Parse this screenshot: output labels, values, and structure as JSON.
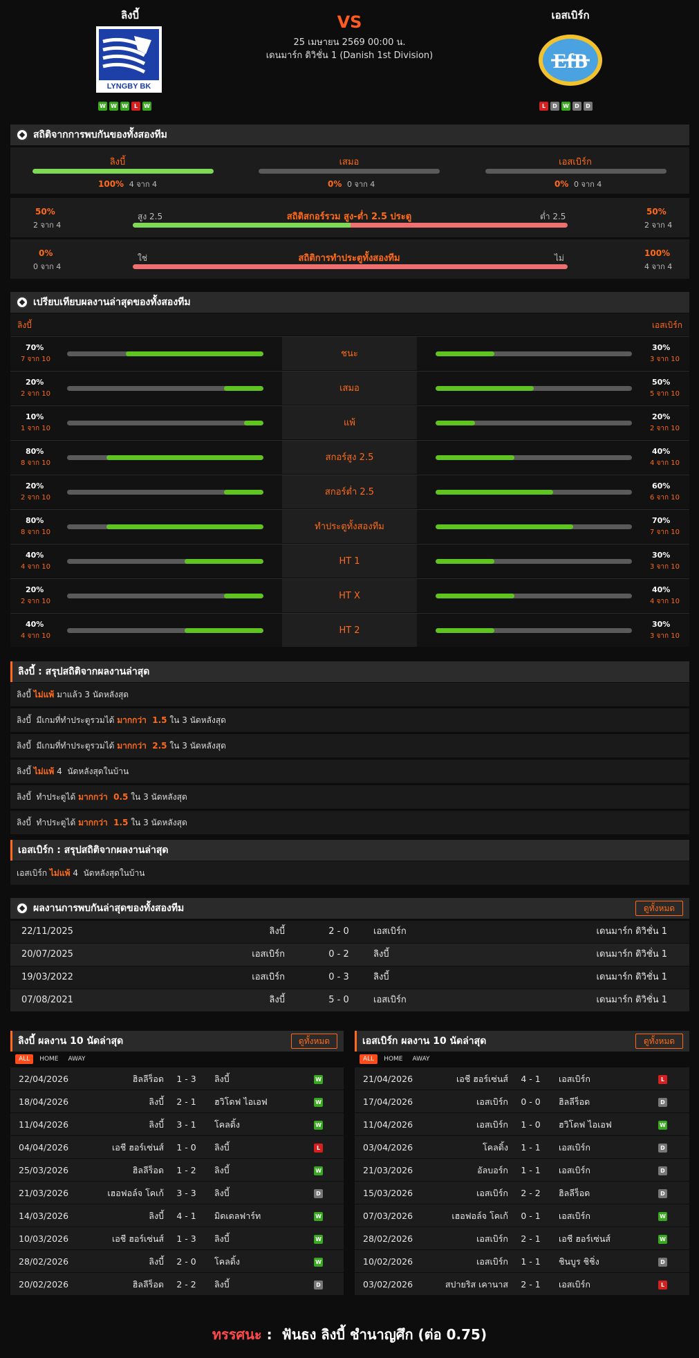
{
  "header": {
    "home_team": "ลิงบี้",
    "away_team": "เอสเบิร์ก",
    "vs": "VS",
    "datetime": "25 เมษายน 2569 00:00 น.",
    "league": "เดนมาร์ก ดิวิชั่น 1 (Danish 1st Division)",
    "home_logo_text": "LYNGBY BK",
    "away_logo_text": "EfB",
    "home_form": [
      "W",
      "W",
      "W",
      "L",
      "W"
    ],
    "away_form": [
      "L",
      "D",
      "W",
      "D",
      "D"
    ]
  },
  "h2h_stats": {
    "title": "สถิติจากการพบกันของทั้งสองทีม",
    "home": {
      "label": "ลิงบี้",
      "pct": "100%",
      "count": "4 จาก 4",
      "value": 1.0
    },
    "draw": {
      "label": "เสมอ",
      "pct": "0%",
      "count": "0 จาก 4",
      "value": 0
    },
    "away": {
      "label": "เอสเบิร์ก",
      "pct": "0%",
      "count": "0 จาก 4",
      "value": 0
    },
    "ou": {
      "title": "สถิติสกอร์รวม สูง-ต่ำ 2.5 ประตู",
      "left_label": "สูง 2.5",
      "right_label": "ต่ำ 2.5",
      "left_pct": "50%",
      "left_count": "2 จาก 4",
      "right_pct": "50%",
      "right_count": "2 จาก 4",
      "value": 0.5
    },
    "btts": {
      "title": "สถิติการทำประตูทั้งสองทีม",
      "left_label": "ใช่",
      "right_label": "ไม่",
      "left_pct": "0%",
      "left_count": "0 จาก 4",
      "right_pct": "100%",
      "right_count": "4 จาก 4",
      "value": 0
    }
  },
  "compare": {
    "title": "เปรียบเทียบผลงานล่าสุดของทั้งสองทีม",
    "home_label": "ลิงบี้",
    "away_label": "เอสเบิร์ก",
    "rows": [
      {
        "label": "ชนะ",
        "hp": "70%",
        "hc": "7 จาก 10",
        "hv": 0.7,
        "ap": "30%",
        "ac": "3 จาก 10",
        "av": 0.3
      },
      {
        "label": "เสมอ",
        "hp": "20%",
        "hc": "2 จาก 10",
        "hv": 0.2,
        "ap": "50%",
        "ac": "5 จาก 10",
        "av": 0.5
      },
      {
        "label": "แพ้",
        "hp": "10%",
        "hc": "1 จาก 10",
        "hv": 0.1,
        "ap": "20%",
        "ac": "2 จาก 10",
        "av": 0.2
      },
      {
        "label": "สกอร์สูง 2.5",
        "hp": "80%",
        "hc": "8 จาก 10",
        "hv": 0.8,
        "ap": "40%",
        "ac": "4 จาก 10",
        "av": 0.4
      },
      {
        "label": "สกอร์ต่ำ 2.5",
        "hp": "20%",
        "hc": "2 จาก 10",
        "hv": 0.2,
        "ap": "60%",
        "ac": "6 จาก 10",
        "av": 0.6
      },
      {
        "label": "ทำประตูทั้งสองทีม",
        "hp": "80%",
        "hc": "8 จาก 10",
        "hv": 0.8,
        "ap": "70%",
        "ac": "7 จาก 10",
        "av": 0.7
      },
      {
        "label": "HT 1",
        "hp": "40%",
        "hc": "4 จาก 10",
        "hv": 0.4,
        "ap": "30%",
        "ac": "3 จาก 10",
        "av": 0.3
      },
      {
        "label": "HT X",
        "hp": "20%",
        "hc": "2 จาก 10",
        "hv": 0.2,
        "ap": "40%",
        "ac": "4 จาก 10",
        "av": 0.4
      },
      {
        "label": "HT 2",
        "hp": "40%",
        "hc": "4 จาก 10",
        "hv": 0.4,
        "ap": "30%",
        "ac": "3 จาก 10",
        "av": 0.3
      }
    ]
  },
  "home_summary": {
    "title": "ลิงบี้ : สรุปสถิติจากผลงานล่าสุด",
    "items": [
      {
        "a": "ลิงบี้",
        "b": "ไม่แพ้",
        "c": "มาแล้ว 3 นัดหลังสุด"
      },
      {
        "a": "ลิงบี้  มีเกมที่ทำประตูรวมได้",
        "b": "มากกว่า  1.5",
        "c": "ใน 3 นัดหลังสุด"
      },
      {
        "a": "ลิงบี้  มีเกมที่ทำประตูรวมได้",
        "b": "มากกว่า  2.5",
        "c": "ใน 3 นัดหลังสุด"
      },
      {
        "a": "ลิงบี้",
        "b": "ไม่แพ้",
        "c": "4  นัดหลังสุดในบ้าน"
      },
      {
        "a": "ลิงบี้  ทำประตูได้",
        "b": "มากกว่า  0.5",
        "c": "ใน 3 นัดหลังสุด"
      },
      {
        "a": "ลิงบี้  ทำประตูได้",
        "b": "มากกว่า  1.5",
        "c": "ใน 3 นัดหลังสุด"
      }
    ]
  },
  "away_summary": {
    "title": "เอสเบิร์ก : สรุปสถิติจากผลงานล่าสุด",
    "items": [
      {
        "a": "เอสเบิร์ก",
        "b": "ไม่แพ้",
        "c": "4  นัดหลังสุดในบ้าน"
      }
    ]
  },
  "h2h_results": {
    "title": "ผลงานการพบกันล่าสุดของทั้งสองทีม",
    "view_all": "ดูทั้งหมด",
    "rows": [
      {
        "date": "22/11/2025",
        "home": "ลิงบี้",
        "score": "2 - 0",
        "away": "เอสเบิร์ก",
        "league": "เดนมาร์ก ดิวิชั่น 1"
      },
      {
        "date": "20/07/2025",
        "home": "เอสเบิร์ก",
        "score": "0 - 2",
        "away": "ลิงบี้",
        "league": "เดนมาร์ก ดิวิชั่น 1"
      },
      {
        "date": "19/03/2022",
        "home": "เอสเบิร์ก",
        "score": "0 - 3",
        "away": "ลิงบี้",
        "league": "เดนมาร์ก ดิวิชั่น 1"
      },
      {
        "date": "07/08/2021",
        "home": "ลิงบี้",
        "score": "5 - 0",
        "away": "เอสเบิร์ก",
        "league": "เดนมาร์ก ดิวิชั่น 1"
      }
    ]
  },
  "home_form_table": {
    "title": "ลิงบี้ ผลงาน 10 นัดล่าสุด",
    "view_all": "ดูทั้งหมด",
    "tabs": [
      "ALL",
      "HOME",
      "AWAY"
    ],
    "rows": [
      {
        "date": "22/04/2026",
        "home": "ฮิลลีร็อด",
        "score": "1 - 3",
        "away": "ลิงบี้",
        "r": "W"
      },
      {
        "date": "18/04/2026",
        "home": "ลิงบี้",
        "score": "2 - 1",
        "away": "ฮวิโดฟ ไอเอฟ",
        "r": "W"
      },
      {
        "date": "11/04/2026",
        "home": "ลิงบี้",
        "score": "3 - 1",
        "away": "โคลดิ้ง",
        "r": "W"
      },
      {
        "date": "04/04/2026",
        "home": "เอชี ฮอร์เซ่นส์",
        "score": "1 - 0",
        "away": "ลิงบี้",
        "r": "L"
      },
      {
        "date": "25/03/2026",
        "home": "ฮิลลีร็อด",
        "score": "1 - 2",
        "away": "ลิงบี้",
        "r": "W"
      },
      {
        "date": "21/03/2026",
        "home": "เฮอฟอล์จ โคเก้",
        "score": "3 - 3",
        "away": "ลิงบี้",
        "r": "D"
      },
      {
        "date": "14/03/2026",
        "home": "ลิงบี้",
        "score": "4 - 1",
        "away": "มิดเดลฟาร์ท",
        "r": "W"
      },
      {
        "date": "10/03/2026",
        "home": "เอชี ฮอร์เซ่นส์",
        "score": "1 - 3",
        "away": "ลิงบี้",
        "r": "W"
      },
      {
        "date": "28/02/2026",
        "home": "ลิงบี้",
        "score": "2 - 0",
        "away": "โคลดิ้ง",
        "r": "W"
      },
      {
        "date": "20/02/2026",
        "home": "ฮิลลีร็อด",
        "score": "2 - 2",
        "away": "ลิงบี้",
        "r": "D"
      }
    ]
  },
  "away_form_table": {
    "title": "เอสเบิร์ก ผลงาน 10 นัดล่าสุด",
    "view_all": "ดูทั้งหมด",
    "tabs": [
      "ALL",
      "HOME",
      "AWAY"
    ],
    "rows": [
      {
        "date": "21/04/2026",
        "home": "เอชี ฮอร์เซ่นส์",
        "score": "4 - 1",
        "away": "เอสเบิร์ก",
        "r": "L"
      },
      {
        "date": "17/04/2026",
        "home": "เอสเบิร์ก",
        "score": "0 - 0",
        "away": "ฮิลลีร็อด",
        "r": "D"
      },
      {
        "date": "11/04/2026",
        "home": "เอสเบิร์ก",
        "score": "1 - 0",
        "away": "ฮวิโดฟ ไอเอฟ",
        "r": "W"
      },
      {
        "date": "03/04/2026",
        "home": "โคลดิ้ง",
        "score": "1 - 1",
        "away": "เอสเบิร์ก",
        "r": "D"
      },
      {
        "date": "21/03/2026",
        "home": "อัลบอร์ก",
        "score": "1 - 1",
        "away": "เอสเบิร์ก",
        "r": "D"
      },
      {
        "date": "15/03/2026",
        "home": "เอสเบิร์ก",
        "score": "2 - 2",
        "away": "ฮิลลีร็อด",
        "r": "D"
      },
      {
        "date": "07/03/2026",
        "home": "เฮอฟอล์จ โคเก้",
        "score": "0 - 1",
        "away": "เอสเบิร์ก",
        "r": "W"
      },
      {
        "date": "28/02/2026",
        "home": "เอสเบิร์ก",
        "score": "2 - 1",
        "away": "เอชี ฮอร์เซ่นส์",
        "r": "W"
      },
      {
        "date": "10/02/2026",
        "home": "เอสเบิร์ก",
        "score": "1 - 1",
        "away": "ชินบูร ชิชิ่ง",
        "r": "D"
      },
      {
        "date": "03/02/2026",
        "home": "สปายริส เคานาส",
        "score": "2 - 1",
        "away": "เอสเบิร์ก",
        "r": "L"
      }
    ]
  },
  "prediction": {
    "label": "ทรรศนะ",
    "sep": " :  ",
    "text": "ฟันธง ลิงบี้ ชำนาญศึก (ต่อ 0.75)"
  },
  "colors": {
    "accent": "#ff6b1a",
    "win": "#38a81e",
    "loss": "#d61f1f",
    "draw": "#777777",
    "bar_green": "#5fc41f",
    "bar_red": "#f07070"
  }
}
